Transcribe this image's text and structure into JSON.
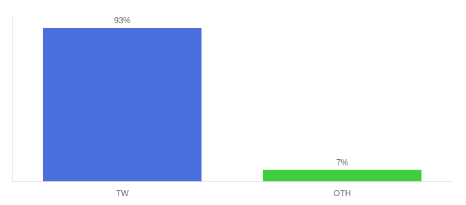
{
  "chart_data": {
    "type": "bar",
    "categories": [
      "TW",
      "OTH"
    ],
    "values": [
      93,
      7
    ],
    "value_labels": [
      "93%",
      "7%"
    ],
    "colors": [
      "#4a6fdc",
      "#3ecf3e"
    ],
    "ylim": [
      0,
      100
    ],
    "grid": false,
    "tick_labels": "x",
    "data_labels": true
  }
}
